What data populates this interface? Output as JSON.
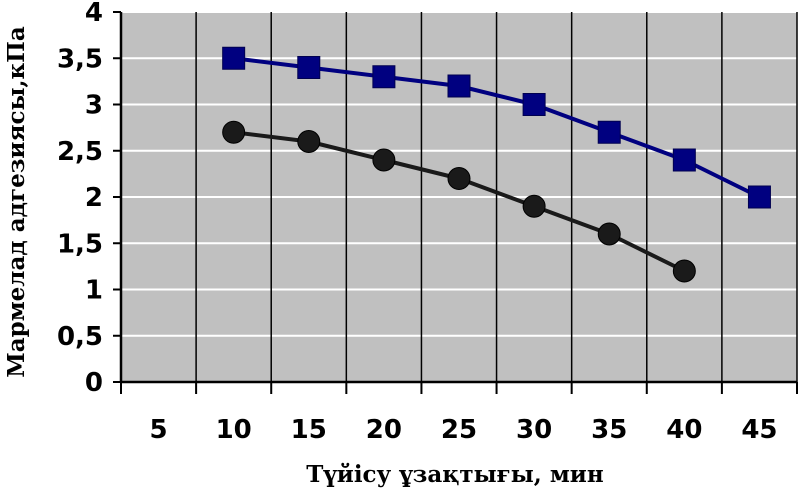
{
  "chart_data": {
    "type": "line",
    "title": "",
    "xlabel": "Түйісу ұзақтығы, мин",
    "ylabel": "Мармелад адгезиясы,кПа",
    "x_tick_labels": [
      "5",
      "10",
      "15",
      "20",
      "25",
      "30",
      "35",
      "40",
      "45"
    ],
    "y_tick_labels": [
      "0",
      "0,5",
      "1",
      "1,5",
      "2",
      "2,5",
      "3",
      "3,5",
      "4"
    ],
    "xlim": [
      2.5,
      47.5
    ],
    "ylim": [
      0,
      4
    ],
    "grid": true,
    "legend": "none",
    "series": [
      {
        "marker": "square",
        "color": "#000080",
        "x": [
          10,
          15,
          20,
          25,
          30,
          35,
          40,
          45
        ],
        "values": [
          3.5,
          3.4,
          3.3,
          3.2,
          3.0,
          2.7,
          2.4,
          2.0
        ]
      },
      {
        "marker": "circle",
        "color": "#1a1a1a",
        "x": [
          10,
          15,
          20,
          25,
          30,
          35,
          40
        ],
        "values": [
          2.7,
          2.6,
          2.4,
          2.2,
          1.9,
          1.6,
          1.2
        ]
      }
    ],
    "colors": {
      "plot_background": "#c0c0c0",
      "gridline": "#ffffff",
      "category_divider": "#000000"
    }
  }
}
